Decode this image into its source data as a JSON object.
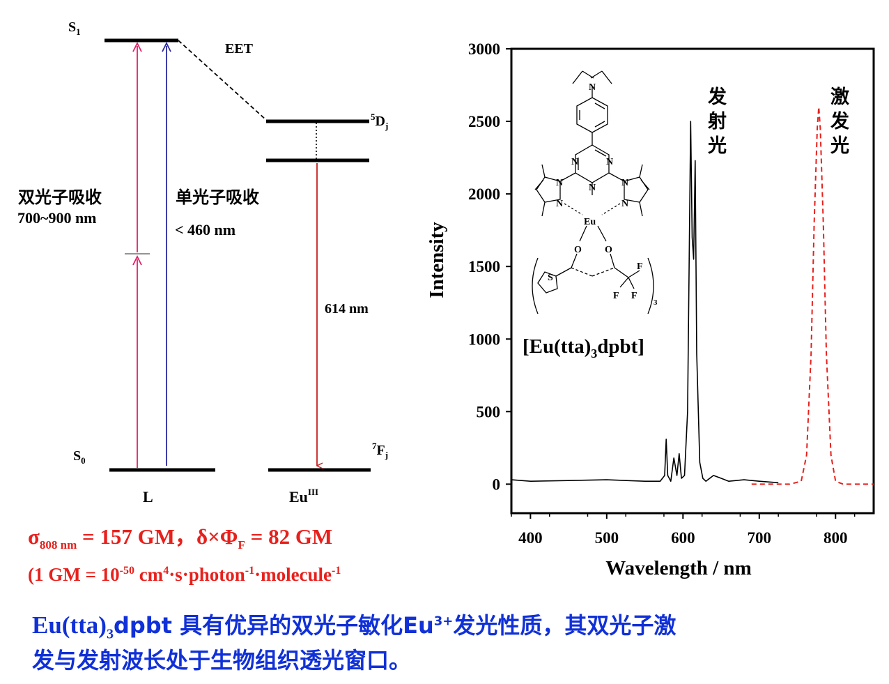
{
  "diagram": {
    "s1_label": "S",
    "s1_sub": "1",
    "s0_label": "S",
    "s0_sub": "0",
    "eet_label": "EET",
    "d_level_sup": "5",
    "d_level_main": "D",
    "d_level_sub": "j",
    "f_level_sup": "7",
    "f_level_main": "F",
    "f_level_sub": "j",
    "two_photon_label": "双光子吸收",
    "two_photon_range": "700~900 nm",
    "one_photon_label": "单光子吸收",
    "one_photon_range": "< 460 nm",
    "emission_label": "614 nm",
    "ligand_label": "L",
    "eu_label_main": "Eu",
    "eu_label_sup": "III",
    "colors": {
      "two_photon": "#e0206a",
      "one_photon": "#2828a0",
      "emission": "#c82020"
    }
  },
  "params": {
    "sigma_symbol": "σ",
    "sigma_sub": "808 nm",
    "sigma_value": " = 157 GM，",
    "delta_text": "δ×Φ",
    "phi_sub": "F",
    "delta_value": " = 82 GM",
    "gm_prefix": "(1 GM = 10",
    "gm_exp": "-50",
    "gm_cm": " cm",
    "gm_cm_exp": "4",
    "gm_s_photon": "·s·photon",
    "gm_photon_exp": "-1",
    "gm_molecule": "·molecule",
    "gm_molecule_exp": "-1"
  },
  "molecule": {
    "compound_pre": "[Eu(tta)",
    "compound_sub": "3",
    "compound_post": "dpbt]",
    "atom_n": "N",
    "atom_eu": "Eu",
    "atom_o": "O",
    "atom_s": "S",
    "atom_f": "F",
    "subscript_3": "3"
  },
  "chart_data": {
    "type": "line",
    "ylabel": "Intensity",
    "xlabel": "Wavelength / nm",
    "xlim": [
      375,
      850
    ],
    "ylim": [
      -200,
      3000
    ],
    "x_ticks": [
      400,
      500,
      600,
      700,
      800
    ],
    "y_ticks": [
      0,
      500,
      1000,
      1500,
      2000,
      2500,
      3000
    ],
    "series": [
      {
        "name": "发射光",
        "style": "solid",
        "color": "#000000",
        "x": [
          375,
          400,
          450,
          500,
          550,
          570,
          576,
          578,
          580,
          584,
          588,
          592,
          595,
          598,
          602,
          606,
          610,
          612,
          614,
          616,
          618,
          622,
          626,
          630,
          640,
          650,
          660,
          680,
          700,
          725
        ],
        "y": [
          30,
          20,
          25,
          30,
          20,
          20,
          60,
          310,
          60,
          20,
          180,
          60,
          210,
          40,
          60,
          500,
          2500,
          1700,
          1550,
          2230,
          900,
          150,
          40,
          20,
          60,
          40,
          20,
          30,
          20,
          10
        ]
      },
      {
        "name": "激发光",
        "style": "dashed",
        "color": "#e8201c",
        "x": [
          690,
          740,
          755,
          762,
          768,
          772,
          776,
          778,
          780,
          784,
          788,
          794,
          800,
          810,
          850
        ],
        "y": [
          0,
          0,
          20,
          200,
          900,
          1800,
          2450,
          2600,
          2450,
          1800,
          900,
          200,
          20,
          0,
          0
        ]
      }
    ],
    "annotations": [
      {
        "text_lines": [
          "发",
          "射",
          "光"
        ]
      },
      {
        "text_lines": [
          "激",
          "发",
          "光"
        ]
      }
    ]
  },
  "footer": {
    "line1_pre": "Eu(tta)",
    "line1_sub": "3",
    "line1_mid": "dpbt 具有优异的双光子敏化Eu",
    "line1_sup": "3+",
    "line1_post": "发光性质，其双光子激",
    "line2": "发与发射波长处于生物组织透光窗口。"
  }
}
